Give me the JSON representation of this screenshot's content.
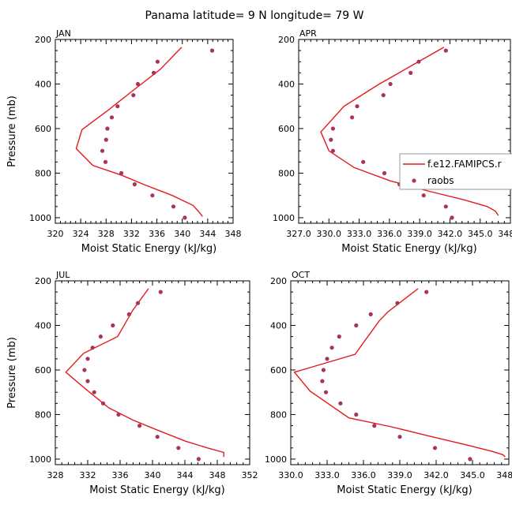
{
  "figure": {
    "title": "Panama  latitude= 9 N longitude= 79 W"
  },
  "colors": {
    "model": "#e41a1c",
    "obs": "#a8345a",
    "axis": "#000000"
  },
  "legend": {
    "model_label": "f.e12.FAMIPCS.r",
    "obs_label": "raobs",
    "placement": "right, in APR panel"
  },
  "chart_data": [
    {
      "type": "line",
      "title": "JAN",
      "xlabel": "Moist Static Energy (kJ/kg)",
      "ylabel": "Pressure (mb)",
      "xlim": [
        320,
        348
      ],
      "ylim": [
        1025,
        200
      ],
      "xticks": [
        "320",
        "324",
        "328",
        "332",
        "336",
        "340",
        "344",
        "348"
      ],
      "yticks": [
        "200",
        "400",
        "600",
        "800",
        "1000"
      ],
      "series": [
        {
          "name": "f.e12.FAMIPCS.r",
          "kind": "line",
          "x": [
            343.2,
            342.5,
            341.7,
            338.4,
            334.3,
            330.5,
            325.9,
            323.3,
            324.2,
            328.2,
            332.2,
            336.5,
            339.9
          ],
          "y": [
            995,
            970,
            945,
            900,
            855,
            810,
            765,
            690,
            605,
            520,
            430,
            335,
            235
          ]
        },
        {
          "name": "raobs",
          "kind": "scatter",
          "x": [
            340.4,
            338.6,
            335.3,
            332.5,
            330.4,
            327.9,
            327.4,
            328.0,
            328.2,
            328.9,
            329.8,
            332.3,
            333.0,
            335.5,
            336.1,
            344.7
          ],
          "y": [
            1000,
            950,
            900,
            850,
            800,
            750,
            700,
            650,
            600,
            550,
            500,
            450,
            400,
            350,
            300,
            250
          ]
        }
      ]
    },
    {
      "type": "line",
      "title": "APR",
      "xlabel": "Moist Static Energy (kJ/kg)",
      "ylabel": "",
      "xlim": [
        327.0,
        348.0
      ],
      "ylim": [
        1025,
        200
      ],
      "xticks": [
        "327.0",
        "330.0",
        "333.0",
        "336.0",
        "339.0",
        "342.0",
        "345.0",
        "348.0"
      ],
      "yticks": [
        "200",
        "400",
        "600",
        "800",
        "1000"
      ],
      "series": [
        {
          "name": "f.e12.FAMIPCS.r",
          "kind": "line",
          "x": [
            346.8,
            346.5,
            345.7,
            343.4,
            339.8,
            336.1,
            332.5,
            330.0,
            329.2,
            331.5,
            335.0,
            338.1,
            341.4
          ],
          "y": [
            990,
            970,
            950,
            920,
            880,
            835,
            775,
            700,
            615,
            500,
            400,
            320,
            235
          ]
        },
        {
          "name": "raobs",
          "kind": "scatter",
          "x": [
            342.2,
            341.6,
            339.4,
            337.0,
            335.5,
            333.4,
            330.4,
            330.2,
            330.4,
            332.3,
            332.8,
            335.4,
            336.1,
            338.1,
            338.9,
            341.6
          ],
          "y": [
            1000,
            950,
            900,
            850,
            800,
            750,
            700,
            650,
            600,
            550,
            500,
            450,
            400,
            350,
            300,
            250
          ]
        }
      ]
    },
    {
      "type": "line",
      "title": "JUL",
      "xlabel": "Moist Static Energy (kJ/kg)",
      "ylabel": "Pressure (mb)",
      "xlim": [
        328,
        352
      ],
      "ylim": [
        1025,
        200
      ],
      "xticks": [
        "328",
        "332",
        "336",
        "340",
        "344",
        "348",
        "352"
      ],
      "yticks": [
        "200",
        "400",
        "600",
        "800",
        "1000"
      ],
      "series": [
        {
          "name": "f.e12.FAMIPCS.r",
          "kind": "line",
          "x": [
            348.8,
            348.8,
            346.8,
            344.1,
            340.6,
            337.6,
            334.6,
            331.9,
            329.3,
            331.5,
            335.7,
            337.6,
            339.5
          ],
          "y": [
            990,
            970,
            950,
            920,
            870,
            825,
            770,
            690,
            610,
            525,
            450,
            330,
            235
          ]
        },
        {
          "name": "raobs",
          "kind": "scatter",
          "x": [
            345.7,
            343.2,
            340.6,
            338.4,
            335.8,
            333.9,
            332.8,
            332.0,
            331.6,
            332.0,
            332.6,
            333.6,
            335.1,
            337.1,
            338.2,
            341.0
          ],
          "y": [
            1000,
            950,
            900,
            850,
            800,
            750,
            700,
            650,
            600,
            550,
            500,
            450,
            400,
            350,
            300,
            250
          ]
        }
      ]
    },
    {
      "type": "line",
      "title": "OCT",
      "xlabel": "Moist Static Energy (kJ/kg)",
      "ylabel": "",
      "xlim": [
        330.0,
        348.0
      ],
      "ylim": [
        1025,
        200
      ],
      "xticks": [
        "330.0",
        "333.0",
        "336.0",
        "339.0",
        "342.0",
        "345.0",
        "348.0"
      ],
      "yticks": [
        "200",
        "400",
        "600",
        "800",
        "1000"
      ],
      "series": [
        {
          "name": "f.e12.FAMIPCS.r",
          "kind": "line",
          "x": [
            347.7,
            347.5,
            346.6,
            344.4,
            341.3,
            338.3,
            334.8,
            331.6,
            330.3,
            335.3,
            337.3,
            338.0,
            340.5
          ],
          "y": [
            990,
            980,
            965,
            935,
            895,
            855,
            815,
            695,
            610,
            530,
            380,
            340,
            235
          ]
        },
        {
          "name": "raobs",
          "kind": "scatter",
          "x": [
            344.8,
            341.9,
            339.0,
            336.9,
            335.4,
            334.1,
            332.9,
            332.6,
            332.7,
            333.0,
            333.4,
            334.0,
            335.4,
            336.6,
            338.8,
            341.2
          ],
          "y": [
            1000,
            950,
            900,
            850,
            800,
            750,
            700,
            650,
            600,
            550,
            500,
            450,
            400,
            350,
            300,
            250
          ]
        }
      ]
    }
  ]
}
